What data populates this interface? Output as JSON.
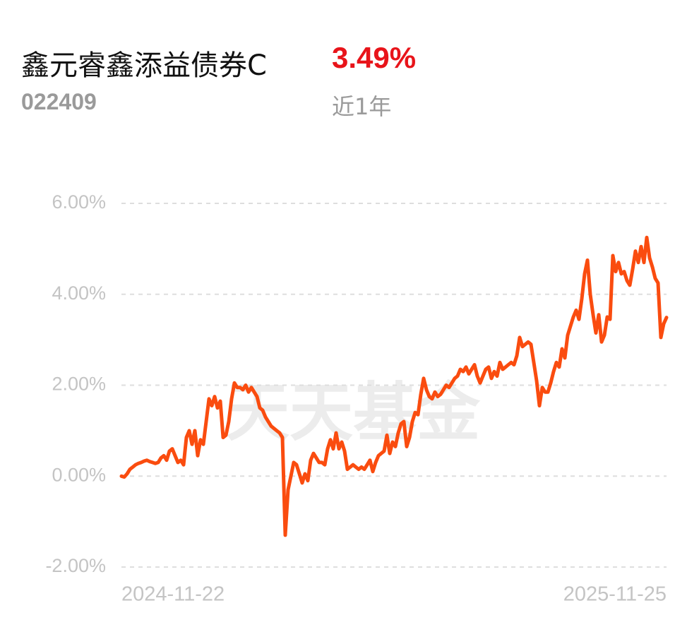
{
  "header": {
    "title": "鑫元睿鑫添益债券C",
    "return": "3.49%",
    "code": "022409",
    "period": "近1年"
  },
  "chart_data": {
    "type": "line",
    "watermark": "天天基金",
    "categories": [
      "2024-11-22",
      null,
      null,
      null,
      null,
      null,
      null,
      null,
      null,
      null,
      null,
      null,
      null,
      null,
      null,
      null,
      null,
      null,
      null,
      null,
      null,
      null,
      null,
      null,
      null,
      null,
      null,
      null,
      null,
      null,
      null,
      null,
      null,
      null,
      null,
      null,
      null,
      null,
      null,
      null,
      null,
      null,
      null,
      null,
      null,
      null,
      null,
      null,
      null,
      null,
      null,
      null,
      null,
      null,
      null,
      null,
      null,
      null,
      null,
      null,
      null,
      null,
      null,
      null,
      null,
      null,
      null,
      null,
      null,
      null,
      null,
      null,
      null,
      null,
      null,
      null,
      null,
      null,
      null,
      null,
      null,
      null,
      null,
      null,
      null,
      null,
      null,
      null,
      null,
      null,
      null,
      null,
      null,
      null,
      null,
      null,
      null,
      null,
      null,
      null,
      null,
      null,
      null,
      null,
      null,
      null,
      null,
      null,
      null,
      null,
      null,
      null,
      null,
      null,
      null,
      null,
      null,
      null,
      null,
      null,
      null,
      null,
      null,
      null,
      null,
      null,
      null,
      null,
      null,
      null,
      null,
      null,
      null,
      null,
      null,
      null,
      null,
      null,
      null,
      null,
      null,
      null,
      null,
      null,
      null,
      null,
      null,
      null,
      null,
      null,
      null,
      null,
      null,
      null,
      null,
      null,
      null,
      null,
      null,
      null,
      null,
      null,
      null,
      null,
      null,
      null,
      null,
      null,
      null,
      null,
      null,
      null,
      null,
      null,
      null,
      null,
      null,
      null,
      null,
      null,
      null,
      null,
      null,
      null,
      null,
      null,
      null,
      null,
      null,
      null,
      null,
      null,
      null,
      "2025-11-25"
    ],
    "series": [
      {
        "color": "#fa4c0f",
        "values": [
          0,
          -0.02,
          0.05,
          0.15,
          0.2,
          0.25,
          0.28,
          0.3,
          0.33,
          0.35,
          0.32,
          0.3,
          0.28,
          0.3,
          0.4,
          0.45,
          0.35,
          0.55,
          0.6,
          0.45,
          0.3,
          0.35,
          0.25,
          0.85,
          1.0,
          0.7,
          1.0,
          0.45,
          0.8,
          0.7,
          1.2,
          1.7,
          1.55,
          1.75,
          1.5,
          1.65,
          0.85,
          0.9,
          1.2,
          1.7,
          2.05,
          1.95,
          1.95,
          1.9,
          2.0,
          1.85,
          1.95,
          1.85,
          1.75,
          1.5,
          1.45,
          1.3,
          1.2,
          1.1,
          1.05,
          1.0,
          0.95,
          0.85,
          -1.3,
          -0.3,
          0.0,
          0.3,
          0.25,
          0.05,
          -0.15,
          0.05,
          -0.1,
          0.35,
          0.5,
          0.4,
          0.3,
          0.3,
          0.25,
          0.6,
          0.8,
          0.6,
          0.95,
          0.6,
          0.75,
          0.55,
          0.15,
          0.2,
          0.25,
          0.2,
          0.15,
          0.2,
          0.15,
          0.25,
          0.35,
          0.1,
          0.3,
          0.45,
          0.5,
          0.55,
          0.9,
          0.5,
          0.75,
          0.65,
          0.95,
          1.15,
          1.2,
          0.65,
          0.85,
          1.2,
          1.4,
          1.35,
          1.8,
          2.15,
          1.9,
          1.75,
          1.7,
          1.85,
          1.75,
          1.8,
          1.9,
          2.0,
          1.95,
          2.05,
          2.15,
          2.2,
          2.35,
          2.3,
          2.4,
          2.25,
          2.35,
          2.45,
          2.2,
          2.05,
          2.2,
          2.35,
          2.4,
          2.15,
          2.3,
          2.2,
          2.5,
          2.35,
          2.4,
          2.45,
          2.5,
          2.45,
          2.65,
          3.05,
          2.85,
          2.9,
          2.95,
          2.9,
          2.5,
          2.1,
          1.55,
          1.95,
          1.85,
          1.85,
          2.05,
          2.3,
          2.5,
          2.4,
          2.8,
          2.6,
          3.1,
          3.3,
          3.5,
          3.65,
          3.45,
          3.9,
          4.45,
          4.75,
          4.0,
          3.55,
          3.15,
          3.55,
          2.95,
          3.1,
          3.5,
          3.45,
          4.85,
          4.5,
          4.7,
          4.45,
          4.5,
          4.3,
          4.2,
          4.55,
          4.95,
          4.7,
          5.05,
          4.7,
          5.25,
          4.8,
          4.6,
          4.35,
          4.25,
          3.05,
          3.35,
          3.49
        ]
      }
    ],
    "ylim": [
      -2,
      6
    ],
    "yticks": [
      {
        "value": -2,
        "label": "-2.00%"
      },
      {
        "value": 0,
        "label": "0.00%"
      },
      {
        "value": 2,
        "label": "2.00%"
      },
      {
        "value": 4,
        "label": "4.00%"
      },
      {
        "value": 6,
        "label": "6.00%"
      }
    ],
    "grid": true
  }
}
